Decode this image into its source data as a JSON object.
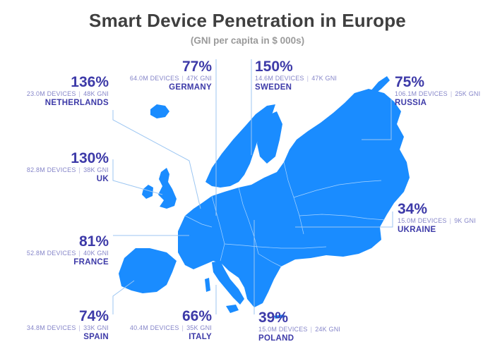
{
  "title": "Smart Device Penetration in Europe",
  "subtitle": "(GNI per capita in $ 000s)",
  "colors": {
    "map": "#1a8cff",
    "text": "#3d3aa8",
    "meta": "#8686c9",
    "leader": "#9cc6f2"
  },
  "countries": [
    {
      "key": "netherlands",
      "pct": "136%",
      "devices": "23.0M DEVICES",
      "gni": "48K GNI",
      "name": "NETHERLANDS"
    },
    {
      "key": "germany",
      "pct": "77%",
      "devices": "64.0M DEVICES",
      "gni": "47K GNI",
      "name": "GERMANY"
    },
    {
      "key": "sweden",
      "pct": "150%",
      "devices": "14.6M DEVICES",
      "gni": "47K GNI",
      "name": "SWEDEN"
    },
    {
      "key": "russia",
      "pct": "75%",
      "devices": "106.1M DEVICES",
      "gni": "25K GNI",
      "name": "RUSSIA"
    },
    {
      "key": "uk",
      "pct": "130%",
      "devices": "82.8M DEVICES",
      "gni": "38K GNI",
      "name": "UK"
    },
    {
      "key": "ukraine",
      "pct": "34%",
      "devices": "15.0M DEVICES",
      "gni": "9K GNI",
      "name": "UKRAINE"
    },
    {
      "key": "france",
      "pct": "81%",
      "devices": "52.8M DEVICES",
      "gni": "40K GNI",
      "name": "FRANCE"
    },
    {
      "key": "spain",
      "pct": "74%",
      "devices": "34.8M DEVICES",
      "gni": "33K GNI",
      "name": "SPAIN"
    },
    {
      "key": "italy",
      "pct": "66%",
      "devices": "40.4M DEVICES",
      "gni": "35K GNI",
      "name": "ITALY"
    },
    {
      "key": "poland",
      "pct": "39%",
      "devices": "15.0M DEVICES",
      "gni": "24K GNI",
      "name": "POLAND"
    }
  ]
}
